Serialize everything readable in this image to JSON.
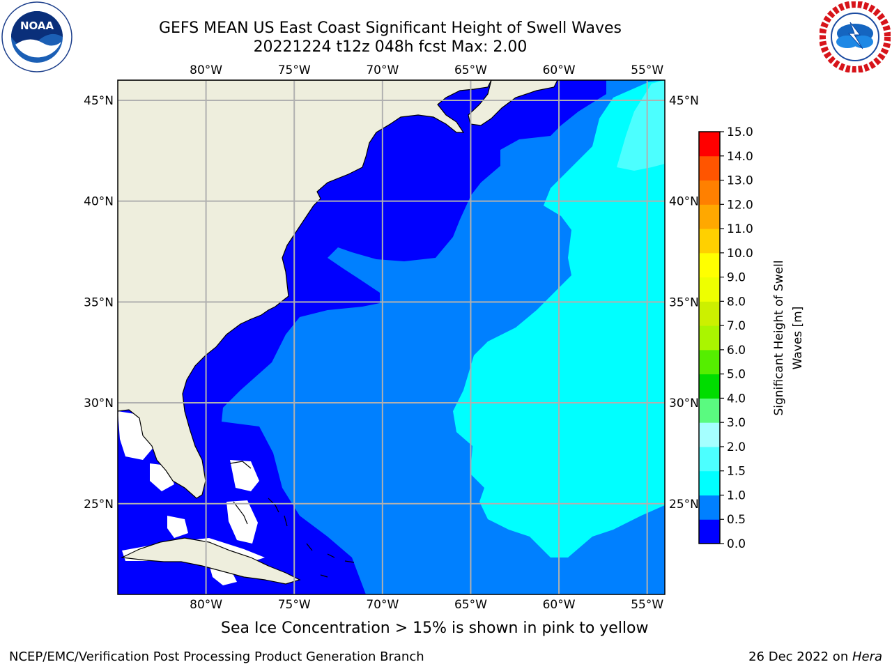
{
  "header": {
    "title_line1": "GEFS MEAN US East Coast Significant Height of Swell Waves",
    "title_line2": "20221224 t12z 048h fcst   Max: 2.00"
  },
  "logos": {
    "left": {
      "name": "noaa-logo",
      "text": "NOAA",
      "ring_text": "NATIONAL OCEANIC AND ATMOSPHERIC ADMINISTRATION · U.S. DEPARTMENT OF COMMERCE"
    },
    "right": {
      "name": "nws-logo",
      "ring_text": "NATIONAL WEATHER SERVICE"
    }
  },
  "map": {
    "projection": "equirectangular",
    "lon_range": [
      -85,
      -54
    ],
    "lat_range": [
      20.5,
      46
    ],
    "lon_ticks": [
      {
        "value": -80,
        "label": "80°W"
      },
      {
        "value": -75,
        "label": "75°W"
      },
      {
        "value": -70,
        "label": "70°W"
      },
      {
        "value": -65,
        "label": "65°W"
      },
      {
        "value": -60,
        "label": "60°W"
      },
      {
        "value": -55,
        "label": "55°W"
      }
    ],
    "lat_ticks": [
      {
        "value": 45,
        "label": "45°N"
      },
      {
        "value": 40,
        "label": "40°N"
      },
      {
        "value": 35,
        "label": "35°N"
      },
      {
        "value": 30,
        "label": "30°N"
      },
      {
        "value": 25,
        "label": "25°N"
      }
    ],
    "colors": {
      "land": "#eeeedd",
      "level_0_0_5": "#0000ff",
      "level_0_5_1_0": "#0080ff",
      "level_1_0_1_5": "#00ffff",
      "level_1_5_2_0": "#4cffff",
      "no_data": "#ffffff",
      "grid": "#b0b0b0"
    }
  },
  "colorbar": {
    "label_line1": "Significant Height of Swell",
    "label_line2": "Waves [m]",
    "levels": [
      "0.0",
      "0.5",
      "1.0",
      "1.5",
      "2.0",
      "3.0",
      "4.0",
      "5.0",
      "6.0",
      "7.0",
      "8.0",
      "9.0",
      "10.0",
      "11.0",
      "12.0",
      "13.0",
      "14.0",
      "15.0"
    ],
    "colors": [
      "#0000ff",
      "#0080ff",
      "#00ffff",
      "#4cffff",
      "#a5ffff",
      "#5afa80",
      "#00dd00",
      "#55ee00",
      "#aaf500",
      "#ccf000",
      "#eeff00",
      "#ffff00",
      "#ffd000",
      "#ffa800",
      "#ff8000",
      "#ff5500",
      "#ff0000"
    ]
  },
  "footer": {
    "caption": "Sea Ice Concentration > 15% is shown in pink to yellow",
    "left": "NCEP/EMC/Verification Post Processing Product Generation Branch",
    "right_prefix": "26 Dec 2022 on ",
    "right_host": "Hera"
  }
}
